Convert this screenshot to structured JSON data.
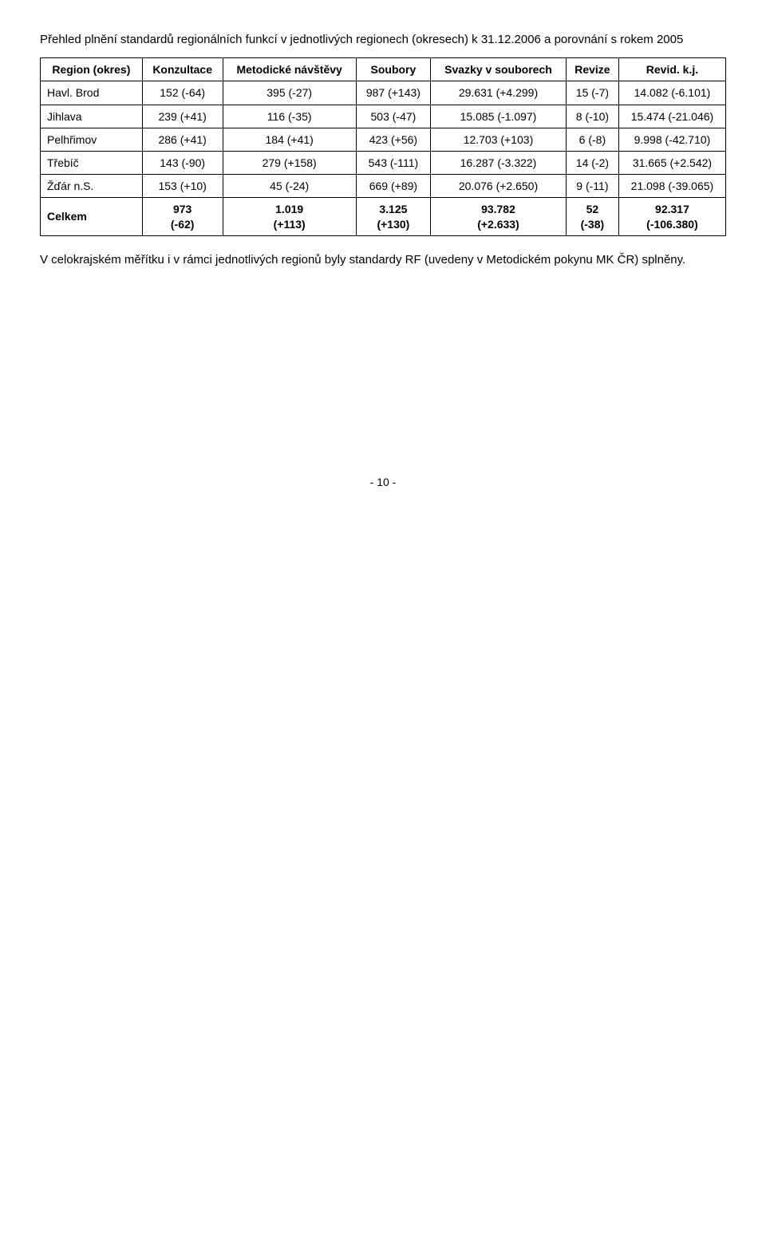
{
  "intro": {
    "line1": "Přehled plnění standardů regionálních funkcí v jednotlivých regionech (okresech) k 31.12.2006 a porovnání s rokem 2005"
  },
  "table": {
    "columns": [
      "Region (okres)",
      "Konzultace",
      "Metodické návštěvy",
      "Soubory",
      "Svazky v souborech",
      "Revize",
      "Revid. k.j."
    ],
    "rows": [
      {
        "label": "Havl. Brod",
        "c1": "152 (-64)",
        "c2": "395 (-27)",
        "c3": "987 (+143)",
        "c4": "29.631 (+4.299)",
        "c5": "15 (-7)",
        "c6": "14.082 (-6.101)"
      },
      {
        "label": "Jihlava",
        "c1": "239 (+41)",
        "c2": "116 (-35)",
        "c3": "503 (-47)",
        "c4": "15.085 (-1.097)",
        "c5": "8 (-10)",
        "c6": "15.474 (-21.046)"
      },
      {
        "label": "Pelhřimov",
        "c1": "286 (+41)",
        "c2": "184 (+41)",
        "c3": "423 (+56)",
        "c4": "12.703 (+103)",
        "c5": "6 (-8)",
        "c6": "9.998 (-42.710)"
      },
      {
        "label": "Třebíč",
        "c1": "143 (-90)",
        "c2": "279 (+158)",
        "c3": "543 (-111)",
        "c4": "16.287 (-3.322)",
        "c5": "14 (-2)",
        "c6": "31.665 (+2.542)"
      },
      {
        "label": "Žďár n.S.",
        "c1": "153 (+10)",
        "c2": "45 (-24)",
        "c3": "669 (+89)",
        "c4": "20.076 (+2.650)",
        "c5": "9 (-11)",
        "c6": "21.098 (-39.065)"
      }
    ],
    "total": {
      "label": "Celkem",
      "c1a": "973",
      "c1b": "(-62)",
      "c2a": "1.019",
      "c2b": "(+113)",
      "c3a": "3.125",
      "c3b": "(+130)",
      "c4a": "93.782",
      "c4b": "(+2.633)",
      "c5a": "52",
      "c5b": "(-38)",
      "c6a": "92.317",
      "c6b": "(-106.380)"
    }
  },
  "footnote": "V celokrajském měřítku i v rámci jednotlivých regionů byly standardy RF (uvedeny v Metodickém pokynu MK ČR) splněny.",
  "pagenum": "- 10 -"
}
